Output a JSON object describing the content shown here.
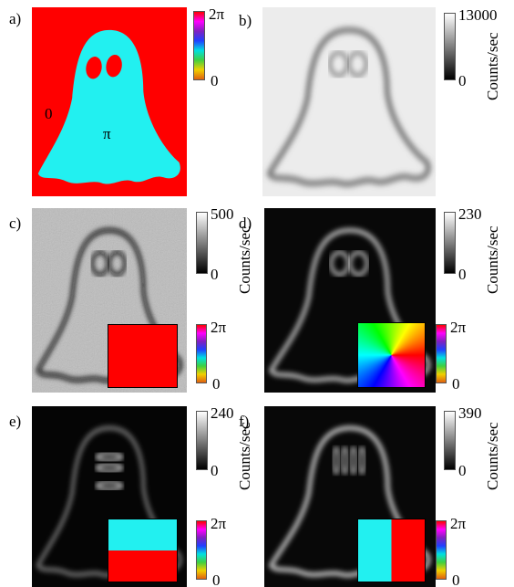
{
  "panels": [
    {
      "label": "a)",
      "phase_colorbar": {
        "max_label": "2π",
        "min_label": "0"
      },
      "region_labels": [
        "0",
        "π"
      ]
    },
    {
      "label": "b)",
      "colorbar": {
        "max_label": "13000",
        "min_label": "0",
        "axis_label": "Counts/sec"
      }
    },
    {
      "label": "c)",
      "colorbar": {
        "max_label": "500",
        "min_label": "0",
        "axis_label": "Counts/sec"
      },
      "phase_colorbar": {
        "max_label": "2π",
        "min_label": "0"
      }
    },
    {
      "label": "d)",
      "colorbar": {
        "max_label": "230",
        "min_label": "0",
        "axis_label": "Counts/sec"
      },
      "phase_colorbar": {
        "max_label": "2π",
        "min_label": "0"
      }
    },
    {
      "label": "e)",
      "colorbar": {
        "max_label": "240",
        "min_label": "0",
        "axis_label": "Counts/sec"
      },
      "phase_colorbar": {
        "max_label": "2π",
        "min_label": "0"
      }
    },
    {
      "label": "f)",
      "colorbar": {
        "max_label": "390",
        "min_label": "0",
        "axis_label": "Counts/sec"
      },
      "phase_colorbar": {
        "max_label": "2π",
        "min_label": "0"
      }
    }
  ]
}
